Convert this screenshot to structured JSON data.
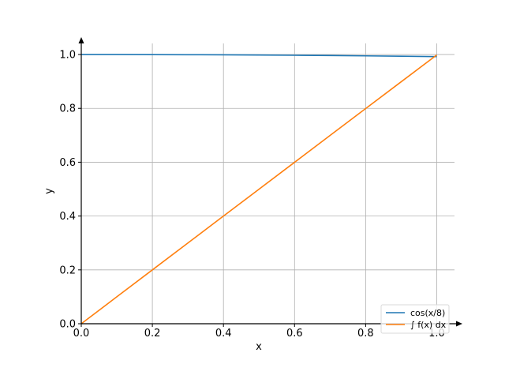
{
  "chart_data": {
    "type": "line",
    "title": "",
    "xlabel": "x",
    "ylabel": "y",
    "xlim": [
      0.0,
      1.05
    ],
    "ylim": [
      0.0,
      1.05
    ],
    "xticks": [
      0.0,
      0.2,
      0.4,
      0.6,
      0.8,
      1.0
    ],
    "xtick_labels": [
      "0.0",
      "0.2",
      "0.4",
      "0.6",
      "0.8",
      "1.0"
    ],
    "yticks": [
      0.0,
      0.2,
      0.4,
      0.6,
      0.8,
      1.0
    ],
    "ytick_labels": [
      "0.0",
      "0.2",
      "0.4",
      "0.6",
      "0.8",
      "1.0"
    ],
    "grid": true,
    "legend_position": "bottom-right",
    "series": [
      {
        "name": "cos(x/8)",
        "color": "#1f77b4",
        "x": [
          0.0,
          0.1,
          0.2,
          0.3,
          0.4,
          0.5,
          0.6,
          0.7,
          0.8,
          0.9,
          1.0
        ],
        "y": [
          1.0,
          0.9999,
          0.9997,
          0.9993,
          0.9988,
          0.998,
          0.9972,
          0.9962,
          0.995,
          0.9937,
          0.9922
        ]
      },
      {
        "name": "∫ f(x) dx",
        "color": "#ff7f0e",
        "x": [
          0.0,
          0.1,
          0.2,
          0.3,
          0.4,
          0.5,
          0.6,
          0.7,
          0.8,
          0.9,
          1.0
        ],
        "y": [
          0.0,
          0.1,
          0.2,
          0.2999,
          0.3999,
          0.4997,
          0.5996,
          0.6994,
          0.7991,
          0.8988,
          0.9984
        ]
      }
    ]
  }
}
